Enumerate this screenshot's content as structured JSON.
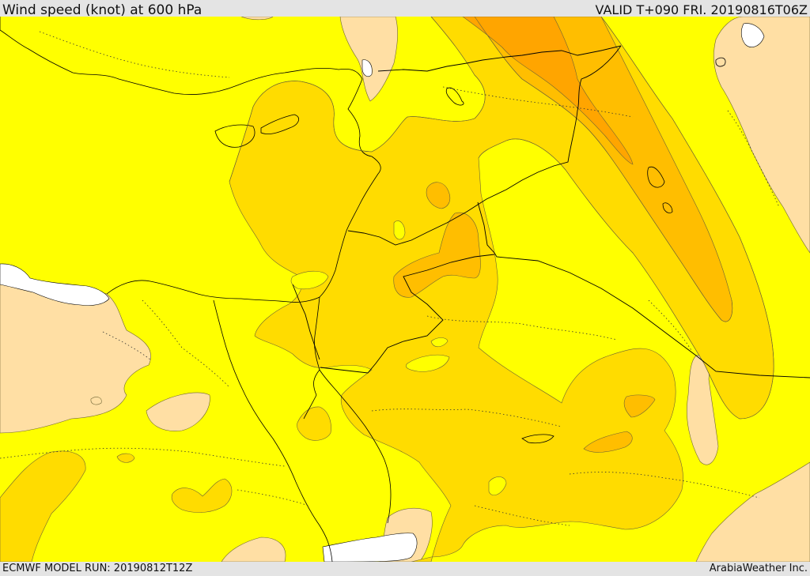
{
  "header": {
    "title": "Wind speed (knot) at 600 hPa",
    "valid": "VALID T+090 FRI. 20190816T06Z"
  },
  "footer": {
    "model_run": "ECMWF MODEL RUN: 20190812T12Z",
    "credit": "ArabiaWeather Inc."
  },
  "map": {
    "colors": {
      "no_data": "#ffffff",
      "band_low": "#ffdfa4",
      "band_1": "#ffff00",
      "band_2": "#ffdc00",
      "band_3": "#ffbe00",
      "band_4": "#ffa500",
      "contour_line": "#6e6434",
      "border_line": "#000000"
    }
  }
}
